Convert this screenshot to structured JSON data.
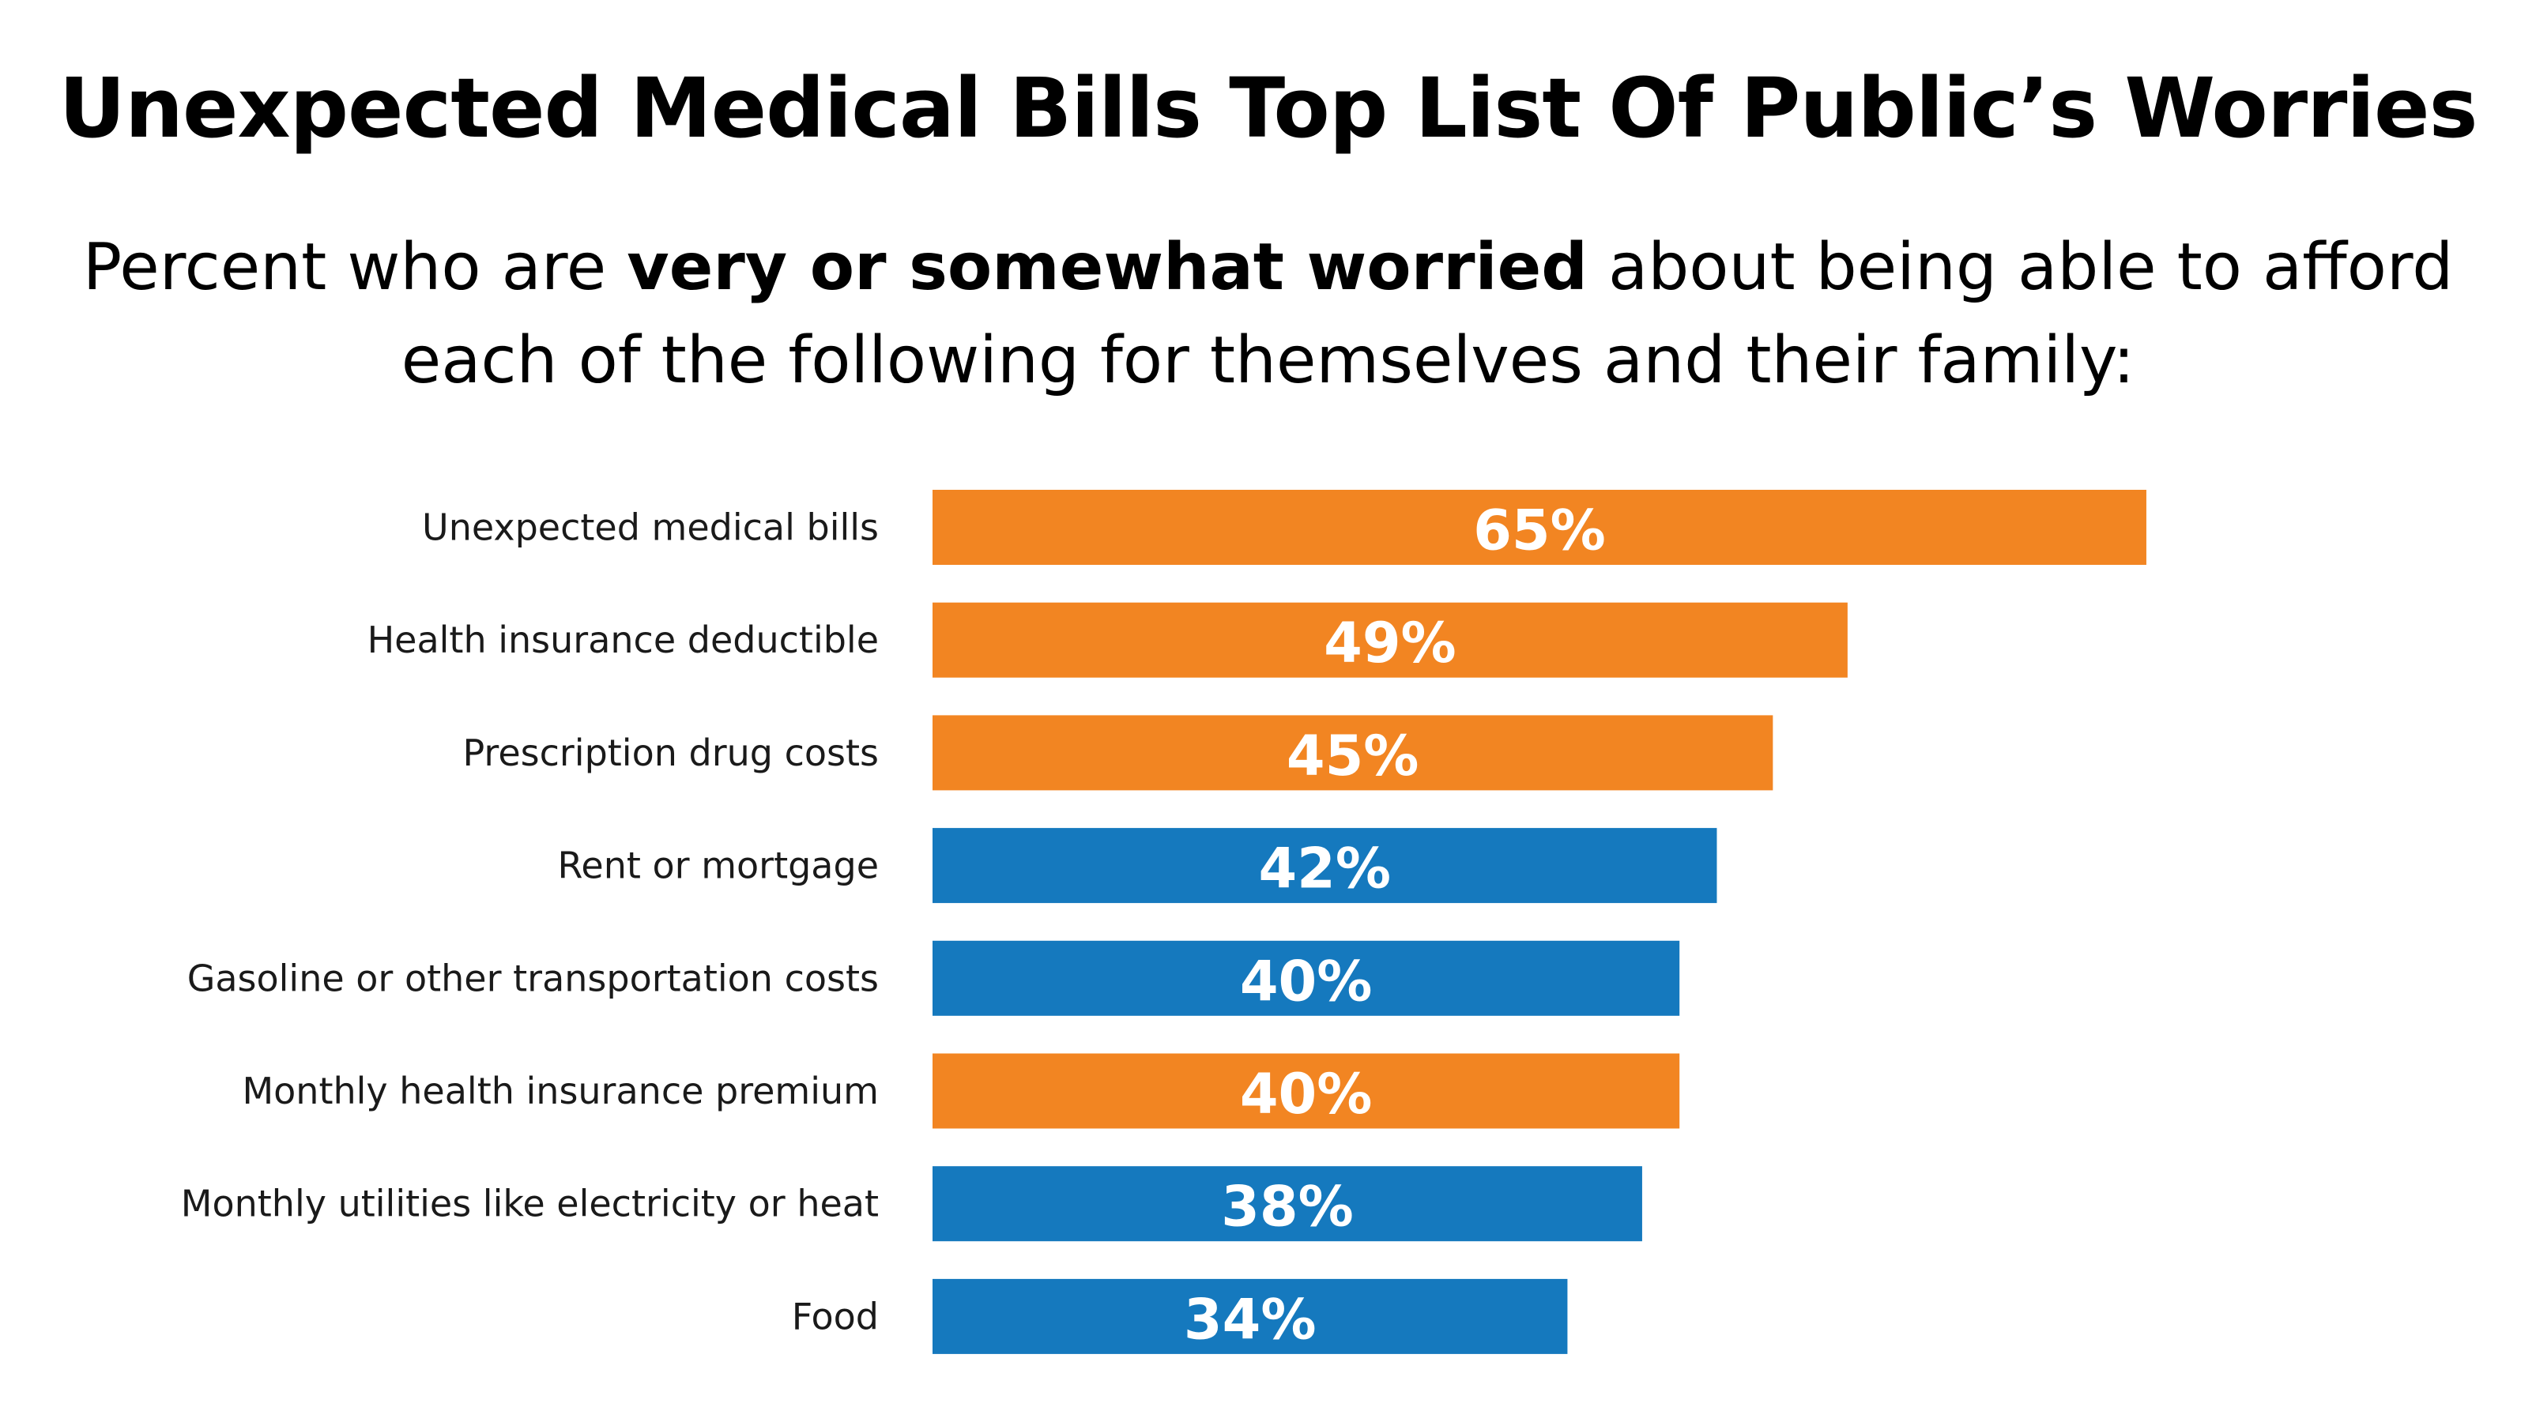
{
  "chart_data": {
    "type": "bar",
    "orientation": "horizontal",
    "title": "Unexpected Medical Bills Top List Of Public’s Worries",
    "subtitle": {
      "line1_prefix": "Percent who are ",
      "line1_bold": "very or somewhat worried",
      "line1_suffix": " about being able to afford",
      "line2": "each of the following for themselves and their family:"
    },
    "categories": [
      "Unexpected medical bills",
      "Health insurance deductible",
      "Prescription drug costs",
      "Rent or mortgage",
      "Gasoline or other transportation costs",
      "Monthly health insurance premium",
      "Monthly utilities like electricity or heat",
      "Food"
    ],
    "values": [
      65,
      49,
      45,
      42,
      40,
      40,
      38,
      34
    ],
    "value_labels": [
      "65%",
      "49%",
      "45%",
      "42%",
      "40%",
      "40%",
      "38%",
      "34%"
    ],
    "bar_groups": [
      "health",
      "health",
      "health",
      "other",
      "other",
      "health",
      "other",
      "other"
    ],
    "colors": {
      "health": "#f28522",
      "other": "#1579be"
    },
    "xlim": [
      0,
      100
    ],
    "grid": false,
    "legend": "none"
  }
}
